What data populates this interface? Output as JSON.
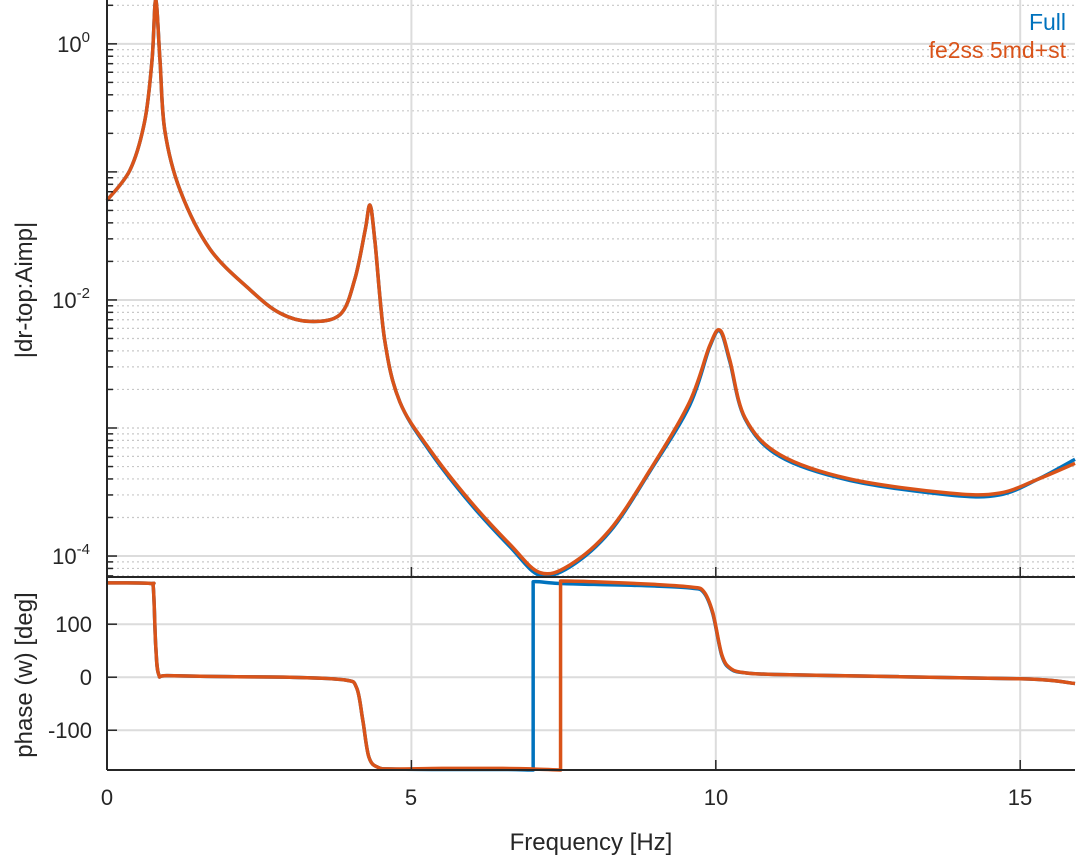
{
  "chart_data": [
    {
      "type": "line",
      "title": "",
      "xlabel": "",
      "ylabel": "|dr-top:Aimp|",
      "yscale": "log",
      "xlim": [
        0,
        15.9
      ],
      "ylim": [
        6.86e-05,
        2.2
      ],
      "yticks": [
        1,
        0.01,
        0.0001
      ],
      "ytick_labels": [
        {
          "base": "10",
          "exp": "0"
        },
        {
          "base": "10",
          "exp": "-2"
        },
        {
          "base": "10",
          "exp": "-4"
        }
      ],
      "grid": true,
      "legend": {
        "placement": "top-right",
        "entries": [
          "Full",
          "fe2ss 5md+st"
        ]
      },
      "colors": {
        "Full": "#0072BD",
        "fe2ss 5md+st": "#D95319"
      },
      "series": [
        {
          "name": "Full",
          "x": [
            0,
            0.38,
            0.62,
            0.74,
            0.8,
            0.87,
            0.95,
            1.2,
            1.69,
            2.35,
            2.84,
            3.33,
            3.83,
            4.07,
            4.24,
            4.32,
            4.4,
            4.56,
            4.81,
            5.3,
            5.96,
            6.62,
            7.11,
            7.6,
            8.26,
            8.92,
            9.57,
            9.9,
            10.07,
            10.23,
            10.48,
            11.05,
            12.2,
            13.84,
            14.66,
            15.3,
            15.9
          ],
          "y": [
            0.06,
            0.104,
            0.25,
            0.75,
            3,
            0.75,
            0.21,
            0.072,
            0.025,
            0.012,
            0.0079,
            0.0068,
            0.0077,
            0.0145,
            0.035,
            0.055,
            0.029,
            0.0049,
            0.0016,
            0.00066,
            0.00026,
            0.000118,
            7.05e-05,
            8.2e-05,
            0.000155,
            0.00046,
            0.0015,
            0.0043,
            0.0057,
            0.0033,
            0.00118,
            0.0006,
            0.00039,
            0.0003,
            0.0003,
            0.0004,
            0.00057
          ]
        },
        {
          "name": "fe2ss 5md+st",
          "x": [
            0,
            0.38,
            0.62,
            0.74,
            0.8,
            0.87,
            0.95,
            1.2,
            1.69,
            2.35,
            2.84,
            3.33,
            3.83,
            4.07,
            4.24,
            4.32,
            4.4,
            4.56,
            4.81,
            5.3,
            5.96,
            6.62,
            7.11,
            7.6,
            8.26,
            8.92,
            9.57,
            9.9,
            10.07,
            10.23,
            10.48,
            11.05,
            12.2,
            13.84,
            14.66,
            15.3,
            15.9
          ],
          "y": [
            0.06,
            0.104,
            0.25,
            0.75,
            3,
            0.75,
            0.21,
            0.072,
            0.025,
            0.012,
            0.0079,
            0.0068,
            0.0077,
            0.0145,
            0.035,
            0.055,
            0.029,
            0.0049,
            0.0016,
            0.00068,
            0.00027,
            0.000123,
            7.43e-05,
            8.5e-05,
            0.00016,
            0.00047,
            0.0016,
            0.0044,
            0.0058,
            0.0034,
            0.0012,
            0.00062,
            0.0004,
            0.00031,
            0.00031,
            0.0004,
            0.00053
          ]
        }
      ]
    },
    {
      "type": "line",
      "title": "",
      "xlabel": "Frequency [Hz]",
      "ylabel": "phase (w) [deg]",
      "xlim": [
        0,
        15.9
      ],
      "ylim": [
        -175,
        189
      ],
      "xticks": [
        0,
        5,
        10,
        15
      ],
      "yticks": [
        100,
        0,
        -100
      ],
      "grid": true,
      "series": [
        {
          "name": "Full",
          "x": [
            0,
            0.7,
            0.76,
            0.8,
            0.85,
            1.0,
            2,
            3,
            3.9,
            4.1,
            4.2,
            4.3,
            4.45,
            4.7,
            5.5,
            6.5,
            7.0,
            7.0,
            7.4,
            8,
            9,
            9.6,
            9.8,
            9.95,
            10.1,
            10.25,
            10.5,
            11,
            12,
            13,
            14,
            15,
            15.5,
            15.9
          ],
          "y": [
            178,
            177,
            170,
            60,
            5,
            3,
            1,
            0,
            -5,
            -20,
            -80,
            -150,
            -170,
            -173,
            -174,
            -174,
            -175,
            180,
            177,
            175,
            172,
            168,
            160,
            120,
            40,
            15,
            8,
            5,
            3,
            1,
            -1,
            -3,
            -6,
            -12
          ]
        },
        {
          "name": "fe2ss 5md+st",
          "x": [
            0,
            0.7,
            0.76,
            0.8,
            0.85,
            1.0,
            2,
            3,
            3.9,
            4.1,
            4.2,
            4.3,
            4.45,
            4.7,
            5.5,
            6.5,
            7.0,
            7.45,
            7.45,
            8,
            9,
            9.6,
            9.8,
            9.95,
            10.1,
            10.25,
            10.5,
            11,
            12,
            13,
            14,
            15,
            15.5,
            15.9
          ],
          "y": [
            178,
            177,
            170,
            60,
            5,
            3,
            1,
            0,
            -5,
            -20,
            -80,
            -150,
            -170,
            -173,
            -172,
            -172,
            -173,
            -177,
            184,
            180,
            175,
            170,
            162,
            122,
            42,
            16,
            8,
            5,
            3,
            1,
            -1,
            -3,
            -6,
            -12
          ]
        }
      ]
    }
  ],
  "legend": {
    "full": "Full",
    "fe2ss": "fe2ss 5md+st"
  },
  "axes": {
    "top_ylabel": "|dr-top:Aimp|",
    "bottom_ylabel": "phase (w) [deg]",
    "xlabel": "Frequency [Hz]",
    "xtick_labels": [
      "0",
      "5",
      "10",
      "15"
    ],
    "phase_tick_labels": [
      "100",
      "0",
      "-100"
    ],
    "mag_ticks": [
      {
        "base": "10",
        "exp": "0"
      },
      {
        "base": "10",
        "exp": "-2"
      },
      {
        "base": "10",
        "exp": "-4"
      }
    ]
  }
}
